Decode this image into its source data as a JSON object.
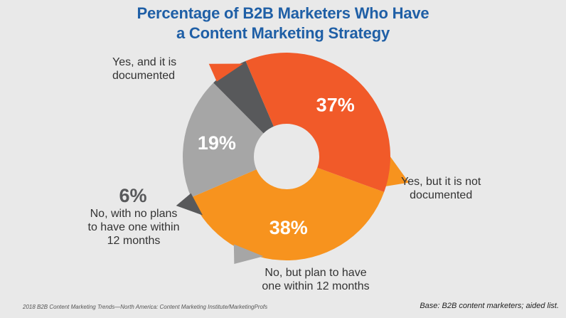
{
  "chart_data": {
    "type": "pie",
    "title_lines": [
      "Percentage of B2B Marketers Who Have",
      "a Content Marketing Strategy"
    ],
    "slices": [
      {
        "label": "Yes, but it is not documented",
        "value": 38,
        "value_label": "38%",
        "color": "#f7931e"
      },
      {
        "label": "No, but plan to have one within 12 months",
        "value": 19,
        "value_label": "19%",
        "color": "#a6a6a6"
      },
      {
        "label": "No, with no plans to have one within 12 months",
        "value": 6,
        "value_label": "6%",
        "color": "#58595b"
      },
      {
        "label": "Yes, and it is documented",
        "value": 37,
        "value_label": "37%",
        "color": "#f15a29"
      }
    ],
    "category_label_lines": {
      "yes_documented": [
        "Yes, and it is",
        "documented"
      ],
      "yes_not_documented": [
        "Yes, but it is not",
        "documented"
      ],
      "plan_to_have": [
        "No, but plan to have",
        "one within 12 months"
      ],
      "no_plans": [
        "No, with no plans",
        "to have one within",
        "12 months"
      ]
    }
  },
  "footer": {
    "source": "2018 B2B Content Marketing Trends—North America: Content Marketing Institute/MarketingProfs",
    "base": "Base: B2B content marketers; aided list."
  }
}
